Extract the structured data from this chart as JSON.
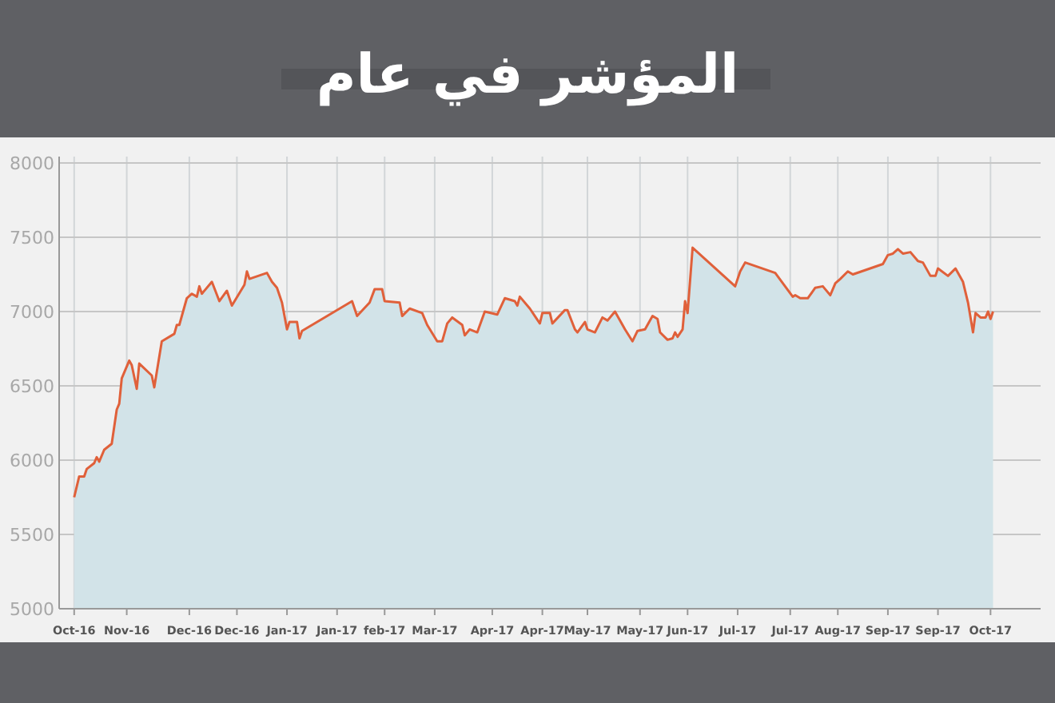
{
  "chart_data": {
    "type": "area",
    "title": "المؤشر في عام",
    "series": [
      {
        "color": "#e0603a",
        "x": [
          "2016-10-16",
          "2016-10-18",
          "2016-10-20",
          "2016-10-21",
          "2016-10-24",
          "2016-10-25",
          "2016-10-26",
          "2016-10-28",
          "2016-10-31",
          "2016-11-02",
          "2016-11-03",
          "2016-11-04",
          "2016-11-07",
          "2016-11-08",
          "2016-11-10",
          "2016-11-11",
          "2016-11-16",
          "2016-11-17",
          "2016-11-20",
          "2016-11-25",
          "2016-11-26",
          "2016-11-27",
          "2016-11-30",
          "2016-12-02",
          "2016-12-04",
          "2016-12-05",
          "2016-12-06",
          "2016-12-10",
          "2016-12-13",
          "2016-12-16",
          "2016-12-18",
          "2016-12-23",
          "2016-12-24",
          "2016-12-25",
          "2017-01-01",
          "2017-01-03",
          "2017-01-05",
          "2017-01-07",
          "2017-01-08",
          "2017-01-09",
          "2017-01-10",
          "2017-01-13",
          "2017-01-14",
          "2017-01-15",
          "2017-02-04",
          "2017-02-06",
          "2017-02-11",
          "2017-02-13",
          "2017-02-16",
          "2017-02-17",
          "2017-02-23",
          "2017-02-24",
          "2017-02-27",
          "2017-03-04",
          "2017-03-06",
          "2017-03-10",
          "2017-03-12",
          "2017-03-14",
          "2017-03-16",
          "2017-03-20",
          "2017-03-21",
          "2017-03-23",
          "2017-03-26",
          "2017-03-29",
          "2017-04-03",
          "2017-04-06",
          "2017-04-10",
          "2017-04-11",
          "2017-04-12",
          "2017-04-16",
          "2017-04-18",
          "2017-04-20",
          "2017-04-21",
          "2017-04-24",
          "2017-04-25",
          "2017-04-30",
          "2017-05-01",
          "2017-05-04",
          "2017-05-05",
          "2017-05-08",
          "2017-05-09",
          "2017-05-12",
          "2017-05-15",
          "2017-05-17",
          "2017-05-20",
          "2017-05-24",
          "2017-05-27",
          "2017-05-29",
          "2017-06-01",
          "2017-06-04",
          "2017-06-06",
          "2017-06-07",
          "2017-06-10",
          "2017-06-12",
          "2017-06-13",
          "2017-06-14",
          "2017-06-16",
          "2017-06-17",
          "2017-06-18",
          "2017-06-20",
          "2017-07-07",
          "2017-07-09",
          "2017-07-11",
          "2017-07-23",
          "2017-07-30",
          "2017-07-31",
          "2017-08-02",
          "2017-08-05",
          "2017-08-08",
          "2017-08-11",
          "2017-08-12",
          "2017-08-14",
          "2017-08-16",
          "2017-08-18",
          "2017-08-21",
          "2017-08-23",
          "2017-09-04",
          "2017-09-06",
          "2017-09-08",
          "2017-09-10",
          "2017-09-12",
          "2017-09-15",
          "2017-09-18",
          "2017-09-20",
          "2017-09-23",
          "2017-09-25",
          "2017-09-26",
          "2017-09-30",
          "2017-10-03",
          "2017-10-06",
          "2017-10-08",
          "2017-10-10",
          "2017-10-11",
          "2017-10-13",
          "2017-10-15",
          "2017-10-16",
          "2017-10-17",
          "2017-10-18"
        ],
        "values": [
          5750,
          5890,
          5890,
          5940,
          5980,
          6020,
          5990,
          6070,
          6110,
          6340,
          6380,
          6550,
          6670,
          6640,
          6480,
          6650,
          6570,
          6490,
          6800,
          6850,
          6910,
          6910,
          7090,
          7120,
          7100,
          7170,
          7120,
          7200,
          7070,
          7140,
          7040,
          7180,
          7270,
          7220,
          7260,
          7200,
          7160,
          7060,
          6970,
          6880,
          6930,
          6930,
          6820,
          6870,
          7070,
          6970,
          7060,
          7150,
          7150,
          7070,
          7060,
          6970,
          7020,
          6990,
          6910,
          6800,
          6800,
          6920,
          6960,
          6910,
          6840,
          6880,
          6860,
          7000,
          6980,
          7090,
          7070,
          7040,
          7100,
          7020,
          6970,
          6920,
          6990,
          6990,
          6920,
          7010,
          7010,
          6880,
          6860,
          6930,
          6880,
          6860,
          6960,
          6940,
          7000,
          6880,
          6800,
          6870,
          6880,
          6970,
          6950,
          6860,
          6810,
          6820,
          6860,
          6830,
          6880,
          7070,
          6990,
          7430,
          7170,
          7270,
          7330,
          7260,
          7100,
          7110,
          7090,
          7090,
          7160,
          7170,
          7150,
          7110,
          7190,
          7220,
          7270,
          7250,
          7320,
          7380,
          7390,
          7420,
          7390,
          7400,
          7340,
          7330,
          7240,
          7240,
          7290,
          7240,
          7290,
          7200,
          7060,
          6860,
          6990,
          6960,
          6960,
          7000,
          6950,
          7000
        ]
      }
    ],
    "xlim": [
      "2016-10-10",
      "2017-11-06"
    ],
    "xticks": [
      {
        "value": "2016-10-16",
        "label": "Oct-16"
      },
      {
        "value": "2016-11-06",
        "label": "Nov-16"
      },
      {
        "value": "2016-12-01",
        "label": "Dec-16"
      },
      {
        "value": "2016-12-20",
        "label": "Dec-16"
      },
      {
        "value": "2017-01-09",
        "label": "Jan-17"
      },
      {
        "value": "2017-01-29",
        "label": "Jan-17"
      },
      {
        "value": "2017-02-17",
        "label": "feb-17"
      },
      {
        "value": "2017-03-09",
        "label": "Mar-17"
      },
      {
        "value": "2017-04-01",
        "label": "Apr-17"
      },
      {
        "value": "2017-04-21",
        "label": "Apr-17"
      },
      {
        "value": "2017-05-09",
        "label": "May-17"
      },
      {
        "value": "2017-05-30",
        "label": "May-17"
      },
      {
        "value": "2017-06-18",
        "label": "Jun-17"
      },
      {
        "value": "2017-07-08",
        "label": "Jul-17"
      },
      {
        "value": "2017-07-29",
        "label": "Jul-17"
      },
      {
        "value": "2017-08-17",
        "label": "Aug-17"
      },
      {
        "value": "2017-09-06",
        "label": "Sep-17"
      },
      {
        "value": "2017-09-26",
        "label": "Sep-17"
      },
      {
        "value": "2017-10-17",
        "label": "Oct-17"
      }
    ],
    "ylim": [
      5000,
      8000
    ],
    "yticks": [
      5000,
      5500,
      6000,
      6500,
      7000,
      7500,
      8000
    ],
    "grid": true
  }
}
